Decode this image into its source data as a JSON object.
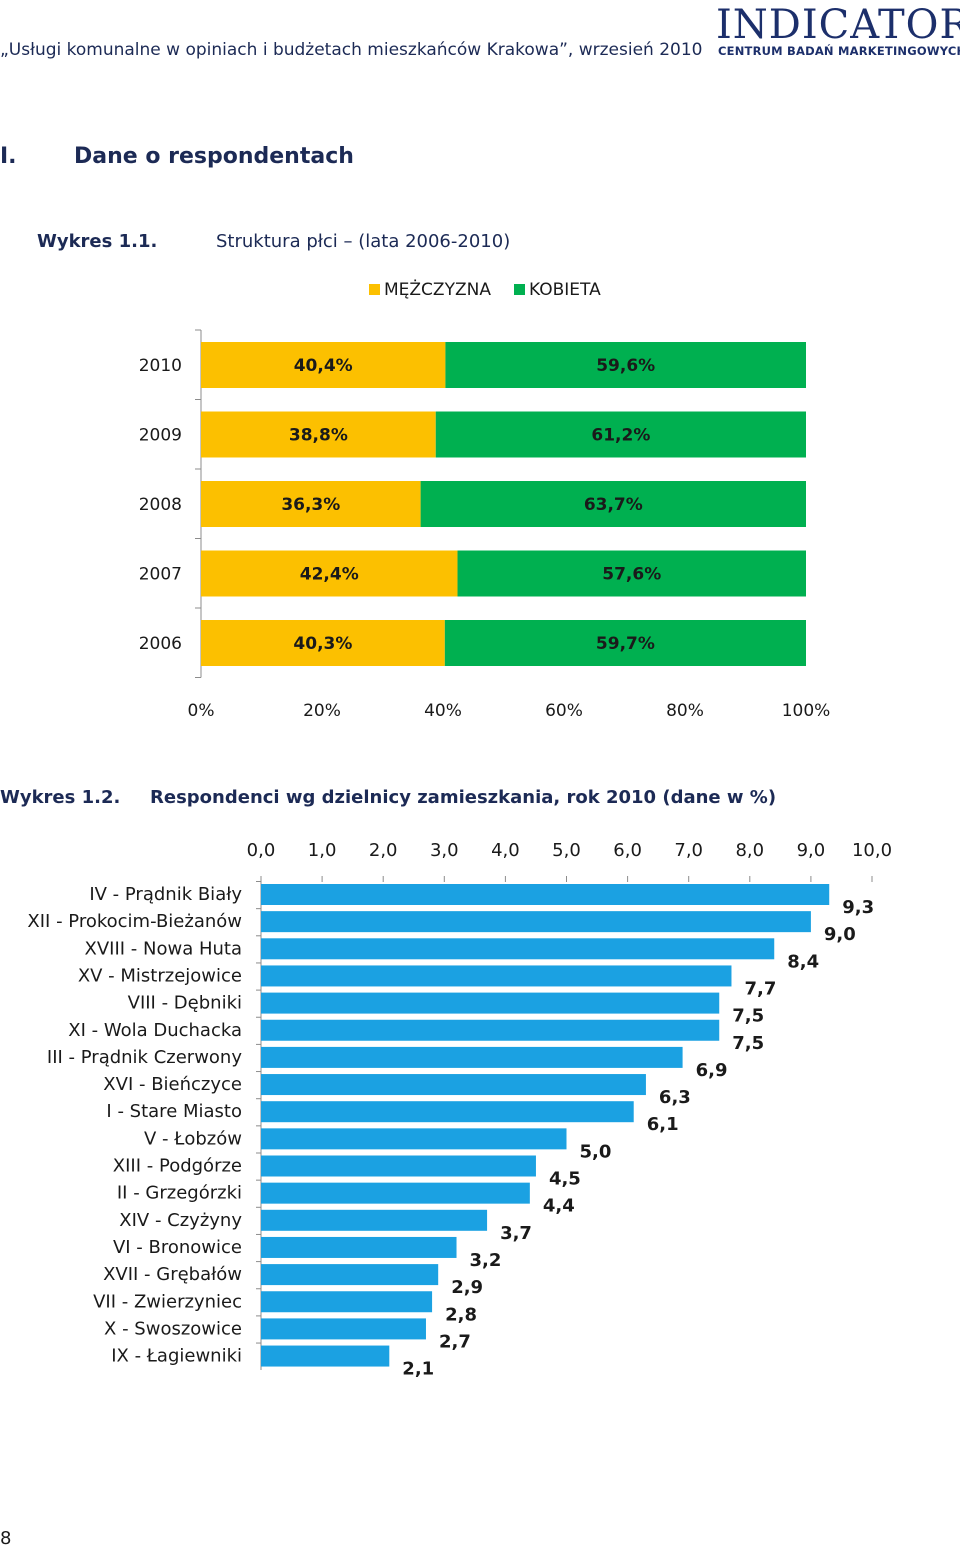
{
  "header": {
    "title": "„Usługi komunalne w opiniach i budżetach mieszkańców Krakowa”, wrzesień 2010",
    "logo_main": "INDICATOR",
    "logo_sub": "CENTRUM BADAŃ MARKETINGOWYCH"
  },
  "section": {
    "number": "I.",
    "title": "Dane o respondentach"
  },
  "chart1": {
    "caption_label": "Wykres 1.1.",
    "caption_text": "Struktura płci – (lata 2006-2010)"
  },
  "chart2": {
    "caption_label": "Wykres 1.2.",
    "caption_text": "Respondenci wg dzielnicy zamieszkania, rok 2010 (dane w %)"
  },
  "page_number": "8",
  "colors": {
    "male": "#FCC000",
    "female": "#00B050",
    "district_bar": "#1BA1E2",
    "axis": "#8c8c8c"
  },
  "chart_data": [
    {
      "type": "bar",
      "orientation": "horizontal",
      "stacked": "percent",
      "title": "Struktura płci – (lata 2006-2010)",
      "categories": [
        "2010",
        "2009",
        "2008",
        "2007",
        "2006"
      ],
      "series": [
        {
          "name": "MĘŻCZYZNA",
          "values": [
            40.4,
            38.8,
            36.3,
            42.4,
            40.3
          ],
          "labels": [
            "40,4%",
            "38,8%",
            "36,3%",
            "42,4%",
            "40,3%"
          ]
        },
        {
          "name": "KOBIETA",
          "values": [
            59.6,
            61.2,
            63.7,
            57.6,
            59.7
          ],
          "labels": [
            "59,6%",
            "61,2%",
            "63,7%",
            "57,6%",
            "59,7%"
          ]
        }
      ],
      "xlim": [
        0,
        100
      ],
      "xticks": [
        "0%",
        "20%",
        "40%",
        "60%",
        "80%",
        "100%"
      ],
      "legend": "top",
      "grid": false
    },
    {
      "type": "bar",
      "orientation": "horizontal",
      "title": "Respondenci wg dzielnicy zamieszkania, rok 2010 (dane w %)",
      "categories": [
        "IV - Prądnik Biały",
        "XII - Prokocim-Bieżanów",
        "XVIII - Nowa Huta",
        "XV - Mistrzejowice",
        "VIII - Dębniki",
        "XI - Wola Duchacka",
        "III - Prądnik Czerwony",
        "XVI - Bieńczyce",
        "I - Stare Miasto",
        "V - Łobzów",
        "XIII - Podgórze",
        "II - Grzegórzki",
        "XIV - Czyżyny",
        "VI - Bronowice",
        "XVII - Grębałów",
        "VII - Zwierzyniec",
        "X - Swoszowice",
        "IX - Łagiewniki"
      ],
      "values": [
        9.3,
        9.0,
        8.4,
        7.7,
        7.5,
        7.5,
        6.9,
        6.3,
        6.1,
        5.0,
        4.5,
        4.4,
        3.7,
        3.2,
        2.9,
        2.8,
        2.7,
        2.1
      ],
      "labels": [
        "9,3",
        "9,0",
        "8,4",
        "7,7",
        "7,5",
        "7,5",
        "6,9",
        "6,3",
        "6,1",
        "5,0",
        "4,5",
        "4,4",
        "3,7",
        "3,2",
        "2,9",
        "2,8",
        "2,7",
        "2,1"
      ],
      "xlim": [
        0,
        10
      ],
      "xticks": [
        "0,0",
        "1,0",
        "2,0",
        "3,0",
        "4,0",
        "5,0",
        "6,0",
        "7,0",
        "8,0",
        "9,0",
        "10,0"
      ],
      "axis_position": "top",
      "grid": false
    }
  ]
}
